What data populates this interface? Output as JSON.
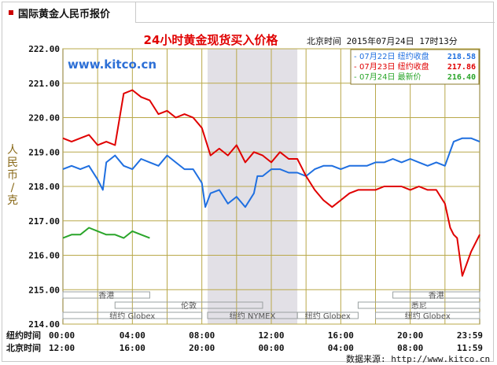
{
  "header": {
    "tab_title": "国际黄金人民币报价"
  },
  "chart_data": {
    "type": "line",
    "title": "24小时黄金现货买入价格",
    "time_label": "北京时间  2015年07月24日 17时13分",
    "watermark": "www.kitco.cn",
    "ylabel": "人民币/克",
    "ylim": [
      214.0,
      222.0
    ],
    "y_ticks": [
      "222.00",
      "221.00",
      "220.00",
      "219.00",
      "218.00",
      "217.00",
      "216.00",
      "215.00",
      "214.00"
    ],
    "x_ticks_ny": [
      "00:00",
      "04:00",
      "08:00",
      "12:00",
      "16:00",
      "20:00",
      "23:59"
    ],
    "x_ticks_bj": [
      "12:00",
      "16:00",
      "20:00",
      "00:00",
      "04:00",
      "08:00",
      "11:59"
    ],
    "row_label_ny": "纽约时间",
    "row_label_bj": "北京时间",
    "legend": [
      {
        "label": "07月22日  纽约收盘",
        "value": "218.58",
        "color": "#1f6fe0"
      },
      {
        "label": "07月23日  纽约收盘",
        "value": "217.86",
        "color": "#e00000"
      },
      {
        "label": "07月24日    最新价",
        "value": "216.40",
        "color": "#2aa52a"
      }
    ],
    "sessions": [
      {
        "name": "香港",
        "start": 0,
        "end": 5.0,
        "row": 1
      },
      {
        "name": "伦敦",
        "start": 3.0,
        "end": 11.5,
        "row": 2
      },
      {
        "name": "纽约 Globex",
        "start": 0,
        "end": 8.0,
        "row": 3
      },
      {
        "name": "纽约 NYMEX",
        "start": 8.33,
        "end": 13.5,
        "row": 3
      },
      {
        "name": "纽约 Globex",
        "start": 13.5,
        "end": 17.0,
        "row": 3
      },
      {
        "name": "香港",
        "start": 19.0,
        "end": 24.0,
        "row": 1
      },
      {
        "name": "悉尼",
        "start": 17.0,
        "end": 24.0,
        "row": 2
      },
      {
        "name": "纽约 Globex",
        "start": 18.0,
        "end": 24.0,
        "row": 3
      }
    ],
    "shaded_range": [
      8.33,
      13.5
    ],
    "series": [
      {
        "color": "#1f6fe0",
        "x": [
          0,
          0.5,
          1,
          1.5,
          2,
          2.3,
          2.5,
          3,
          3.5,
          4,
          4.5,
          5,
          5.5,
          6,
          6.5,
          7,
          7.5,
          8,
          8.2,
          8.5,
          9,
          9.5,
          10,
          10.5,
          11,
          11.2,
          11.5,
          12,
          12.5,
          13,
          13.5,
          14,
          14.5,
          15,
          15.5,
          16,
          16.5,
          17,
          17.5,
          18,
          18.5,
          19,
          19.5,
          20,
          20.5,
          21,
          21.5,
          22,
          22.5,
          23,
          23.5,
          24
        ],
        "y": [
          218.5,
          218.6,
          218.5,
          218.6,
          218.2,
          217.9,
          218.7,
          218.9,
          218.6,
          218.5,
          218.8,
          218.7,
          218.6,
          218.9,
          218.7,
          218.5,
          218.5,
          218.1,
          217.4,
          217.8,
          217.9,
          217.5,
          217.7,
          217.4,
          217.8,
          218.3,
          218.3,
          218.5,
          218.5,
          218.4,
          218.4,
          218.3,
          218.5,
          218.6,
          218.6,
          218.5,
          218.6,
          218.6,
          218.6,
          218.7,
          218.7,
          218.8,
          218.7,
          218.8,
          218.7,
          218.6,
          218.7,
          218.6,
          219.3,
          219.4,
          219.4,
          219.3
        ]
      },
      {
        "color": "#e00000",
        "x": [
          0,
          0.5,
          1,
          1.5,
          2,
          2.5,
          3,
          3.5,
          4,
          4.5,
          5,
          5.5,
          6,
          6.5,
          7,
          7.5,
          8,
          8.5,
          9,
          9.5,
          10,
          10.5,
          11,
          11.5,
          12,
          12.5,
          13,
          13.5,
          14,
          14.5,
          15,
          15.5,
          16,
          16.5,
          17,
          17.5,
          18,
          18.5,
          19,
          19.5,
          20,
          20.5,
          21,
          21.5,
          22,
          22.3,
          22.5,
          22.7,
          23,
          23.5,
          24
        ],
        "y": [
          219.4,
          219.3,
          219.4,
          219.5,
          219.2,
          219.3,
          219.2,
          220.7,
          220.8,
          220.6,
          220.5,
          220.1,
          220.2,
          220.0,
          220.1,
          220.0,
          219.7,
          218.9,
          219.1,
          218.9,
          219.2,
          218.7,
          219.0,
          218.9,
          218.7,
          219.0,
          218.8,
          218.8,
          218.3,
          217.9,
          217.6,
          217.4,
          217.6,
          217.8,
          217.9,
          217.9,
          217.9,
          218.0,
          218.0,
          218.0,
          217.9,
          218.0,
          217.9,
          217.9,
          217.5,
          216.8,
          216.6,
          216.5,
          215.4,
          216.1,
          216.6
        ]
      },
      {
        "color": "#2aa52a",
        "x": [
          0,
          0.5,
          1,
          1.5,
          2,
          2.5,
          3,
          3.5,
          4,
          4.5,
          5
        ],
        "y": [
          216.5,
          216.6,
          216.6,
          216.8,
          216.7,
          216.6,
          216.6,
          216.5,
          216.7,
          216.6,
          216.5
        ]
      }
    ]
  },
  "footer": {
    "source": "数据来源: http://www.kitco.cn"
  }
}
